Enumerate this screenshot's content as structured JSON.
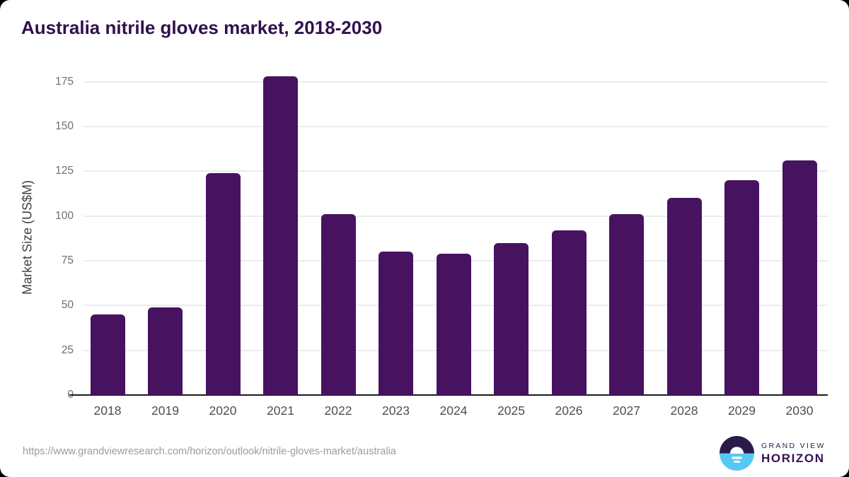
{
  "page": {
    "title": "Australia nitrile gloves market, 2018-2030"
  },
  "footer": {
    "source_url": "https://www.grandviewresearch.com/horizon/outlook/nitrile-gloves-market/australia",
    "logo": {
      "brand_top": "GRAND VIEW",
      "brand_bottom": "HORIZON",
      "mark": "sunrise-horizon-circle-icon"
    }
  },
  "colors": {
    "bar": "#471361",
    "title": "#31104d",
    "grid": "#ececec",
    "axis": "#1a1a1a",
    "y_tick": "#6f6f6f",
    "x_tick": "#4f4f4f",
    "url": "#9b9b9b",
    "logo_dark": "#2b1b4b",
    "logo_blue": "#58c7f3"
  },
  "chart_data": {
    "type": "bar",
    "title": "Australia nitrile gloves market, 2018-2030",
    "categories": [
      "2018",
      "2019",
      "2020",
      "2021",
      "2022",
      "2023",
      "2024",
      "2025",
      "2026",
      "2027",
      "2028",
      "2029",
      "2030"
    ],
    "values": [
      45,
      49,
      124,
      178,
      101,
      80,
      79,
      85,
      92,
      101,
      110,
      120,
      131
    ],
    "xlabel": "",
    "ylabel": "Market Size (US$M)",
    "yticks": [
      0,
      25,
      50,
      75,
      100,
      125,
      150,
      175
    ],
    "ylim": [
      0,
      181
    ],
    "grid": "horizontal",
    "legend": "none",
    "series_name": "Market Size (US$M)"
  }
}
